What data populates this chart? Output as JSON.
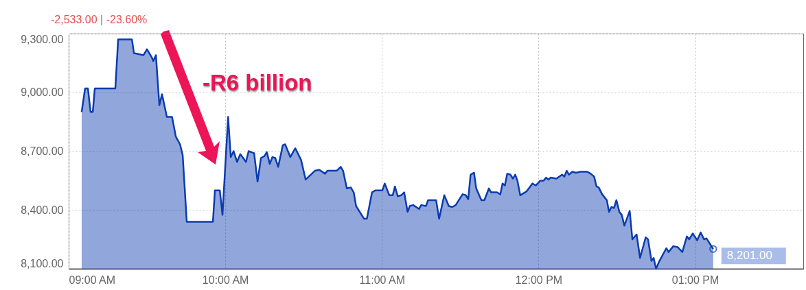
{
  "chart_data": {
    "type": "area",
    "annotations": [
      "-2,533.00 | -23.60%",
      "-R6 billion"
    ],
    "x": [
      9.083,
      9.105,
      9.123,
      9.14,
      9.154,
      9.167,
      9.298,
      9.316,
      9.404,
      9.417,
      9.478,
      9.5,
      9.53,
      9.54,
      9.557,
      9.579,
      9.596,
      9.627,
      9.66,
      9.684,
      9.711,
      9.728,
      9.754,
      9.921,
      9.934,
      9.965,
      9.982,
      10.018,
      10.035,
      10.053,
      10.075,
      10.096,
      10.132,
      10.149,
      10.184,
      10.206,
      10.228,
      10.25,
      10.265,
      10.284,
      10.301,
      10.319,
      10.338,
      10.367,
      10.382,
      10.415,
      10.447,
      10.484,
      10.513,
      10.572,
      10.601,
      10.637,
      10.652,
      10.711,
      10.737,
      10.752,
      10.776,
      10.801,
      10.82,
      10.835,
      10.886,
      10.904,
      10.937,
      10.959,
      11.003,
      11.018,
      11.047,
      11.069,
      11.083,
      11.101,
      11.123,
      11.142,
      11.164,
      11.178,
      11.2,
      11.237,
      11.251,
      11.281,
      11.295,
      11.346,
      11.365,
      11.398,
      11.427,
      11.449,
      11.471,
      11.515,
      11.536,
      11.551,
      11.566,
      11.588,
      11.602,
      11.635,
      11.654,
      11.683,
      11.697,
      11.734,
      11.756,
      11.77,
      11.785,
      11.8,
      11.821,
      11.836,
      11.851,
      11.865,
      11.883,
      11.924,
      11.961,
      11.982,
      12.012,
      12.033,
      12.048,
      12.063,
      12.077,
      12.114,
      12.15,
      12.165,
      12.18,
      12.194,
      12.216,
      12.238,
      12.268,
      12.311,
      12.333,
      12.355,
      12.37,
      12.384,
      12.406,
      12.436,
      12.45,
      12.465,
      12.482,
      12.497,
      12.516,
      12.531,
      12.548,
      12.582,
      12.599,
      12.626,
      12.648,
      12.684,
      12.699,
      12.721,
      12.735,
      12.75,
      12.772,
      12.816,
      12.83,
      12.86,
      12.889,
      12.918,
      12.947,
      12.962,
      12.984,
      13.013,
      13.035,
      13.057,
      13.072,
      13.115
    ],
    "series": [
      {
        "color": "#0a3bb0",
        "values": [
          8900,
          9020,
          9020,
          8900,
          8900,
          9020,
          9020,
          9270,
          9270,
          9200,
          9190,
          9220,
          9180,
          9160,
          9190,
          8935,
          8990,
          8875,
          8875,
          8775,
          8735,
          8680,
          8340,
          8340,
          8500,
          8500,
          8375,
          8875,
          8670,
          8700,
          8645,
          8685,
          8645,
          8700,
          8690,
          8545,
          8665,
          8675,
          8695,
          8635,
          8670,
          8665,
          8620,
          8730,
          8735,
          8670,
          8715,
          8655,
          8555,
          8600,
          8605,
          8585,
          8600,
          8600,
          8620,
          8600,
          8510,
          8515,
          8490,
          8420,
          8355,
          8355,
          8490,
          8500,
          8500,
          8535,
          8475,
          8475,
          8520,
          8470,
          8475,
          8490,
          8390,
          8420,
          8425,
          8405,
          8425,
          8420,
          8450,
          8450,
          8355,
          8475,
          8420,
          8415,
          8425,
          8480,
          8475,
          8455,
          8580,
          8590,
          8510,
          8450,
          8450,
          8510,
          8490,
          8490,
          8480,
          8535,
          8525,
          8585,
          8580,
          8560,
          8580,
          8550,
          8475,
          8495,
          8535,
          8525,
          8550,
          8550,
          8565,
          8555,
          8565,
          8560,
          8580,
          8570,
          8600,
          8580,
          8595,
          8590,
          8595,
          8595,
          8585,
          8570,
          8520,
          8515,
          8480,
          8450,
          8390,
          8415,
          8410,
          8450,
          8390,
          8375,
          8320,
          8395,
          8250,
          8275,
          8155,
          8260,
          8250,
          8140,
          8155,
          8100,
          8140,
          8205,
          8185,
          8215,
          8210,
          8185,
          8265,
          8250,
          8280,
          8245,
          8285,
          8250,
          8255,
          8201
        ],
        "value_labels": [
          null,
          null,
          null,
          null,
          null,
          null,
          null,
          null,
          null,
          null,
          null,
          null,
          null,
          null,
          null,
          null,
          null,
          null,
          null,
          null,
          null,
          null,
          null,
          null,
          null,
          null,
          null,
          null,
          null,
          null,
          null,
          null,
          null,
          null,
          null,
          null,
          null,
          null,
          null,
          null,
          null,
          null,
          null,
          null,
          null,
          null,
          null,
          null,
          null,
          null,
          null,
          null,
          null,
          null,
          null,
          null,
          null,
          null,
          null,
          null,
          null,
          null,
          null,
          null,
          null,
          null,
          null,
          null,
          null,
          null,
          null,
          null,
          null,
          null,
          null,
          null,
          null,
          null,
          null,
          null,
          null,
          null,
          null,
          null,
          null,
          null,
          null,
          null,
          null,
          null,
          null,
          null,
          null,
          null,
          null,
          null,
          null,
          null,
          null,
          null,
          null,
          null,
          null,
          null,
          null,
          null,
          null,
          null,
          null,
          null,
          null,
          null,
          null,
          null,
          null,
          null,
          null,
          null,
          null,
          null,
          null,
          null,
          null,
          null,
          null,
          null,
          null,
          null,
          null,
          null,
          null,
          null,
          null,
          null,
          null,
          null,
          null,
          null,
          null,
          null,
          null,
          null,
          null,
          null,
          null,
          null,
          null,
          null,
          null,
          null,
          null,
          null,
          null,
          null,
          null,
          null,
          null,
          "8,201.00"
        ]
      }
    ],
    "xlim": [
      9,
      13.69
    ],
    "xticks": [
      {
        "value": 9,
        "label": "09:00 AM"
      },
      {
        "value": 10,
        "label": "10:00 AM"
      },
      {
        "value": 11,
        "label": "11:00 AM"
      },
      {
        "value": 12,
        "label": "12:00 PM"
      },
      {
        "value": 13,
        "label": "01:00 PM"
      }
    ],
    "ylim": [
      8100,
      9300
    ],
    "yticks": [
      {
        "value": 8100,
        "label": "8,100.00"
      },
      {
        "value": 8400,
        "label": "8,400.00"
      },
      {
        "value": 8700,
        "label": "8,700.00"
      },
      {
        "value": 9000,
        "label": "9,000.00"
      },
      {
        "value": 9300,
        "label": "9,300.00"
      }
    ],
    "grid": true
  }
}
